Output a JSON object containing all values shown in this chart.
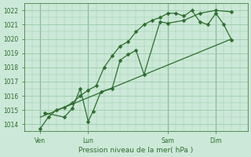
{
  "title": "",
  "xlabel": "Pression niveau de la mer( hPa )",
  "ylabel": "",
  "bg_color": "#cce8d8",
  "line_color": "#2d6e2d",
  "grid_color": "#99ccaa",
  "ylim": [
    1013.5,
    1022.5
  ],
  "yticks": [
    1014,
    1015,
    1016,
    1017,
    1018,
    1019,
    1020,
    1021,
    1022
  ],
  "xlim": [
    0,
    14
  ],
  "xtick_positions": [
    1,
    4,
    9,
    12
  ],
  "xtick_labels": [
    "Ven",
    "Lun",
    "Sam",
    "Dim"
  ],
  "vline_positions": [
    1,
    4,
    9,
    12
  ],
  "line1_x": [
    1.0,
    1.5,
    2.0,
    2.5,
    3.0,
    3.5,
    4.0,
    4.5,
    5.0,
    5.5,
    6.0,
    6.5,
    7.0,
    7.5,
    8.0,
    8.5,
    9.0,
    9.5,
    10.0,
    10.5,
    11.0,
    11.5,
    12.0,
    12.5,
    13.0
  ],
  "line1_y": [
    1013.7,
    1014.5,
    1015.0,
    1015.2,
    1015.5,
    1016.0,
    1016.4,
    1016.7,
    1018.0,
    1018.8,
    1019.5,
    1019.8,
    1020.5,
    1021.0,
    1021.3,
    1021.5,
    1021.8,
    1021.8,
    1021.6,
    1022.0,
    1021.2,
    1021.0,
    1021.8,
    1021.0,
    1019.9
  ],
  "line2_x": [
    1.3,
    2.5,
    3.0,
    3.5,
    4.0,
    4.3,
    4.8,
    5.5,
    6.0,
    6.5,
    7.0,
    7.5,
    8.5,
    9.0,
    10.0,
    11.0,
    12.0,
    13.0
  ],
  "line2_y": [
    1014.8,
    1014.5,
    1015.1,
    1016.5,
    1014.2,
    1014.9,
    1016.3,
    1016.5,
    1018.5,
    1018.9,
    1019.2,
    1017.5,
    1021.2,
    1021.1,
    1021.3,
    1021.8,
    1022.0,
    1021.9
  ],
  "line3_x": [
    1.0,
    13.0
  ],
  "line3_y": [
    1014.5,
    1020.0
  ],
  "figsize": [
    3.2,
    2.0
  ],
  "dpi": 100,
  "tick_labelsize": 5.5,
  "xlabel_fontsize": 6.5
}
